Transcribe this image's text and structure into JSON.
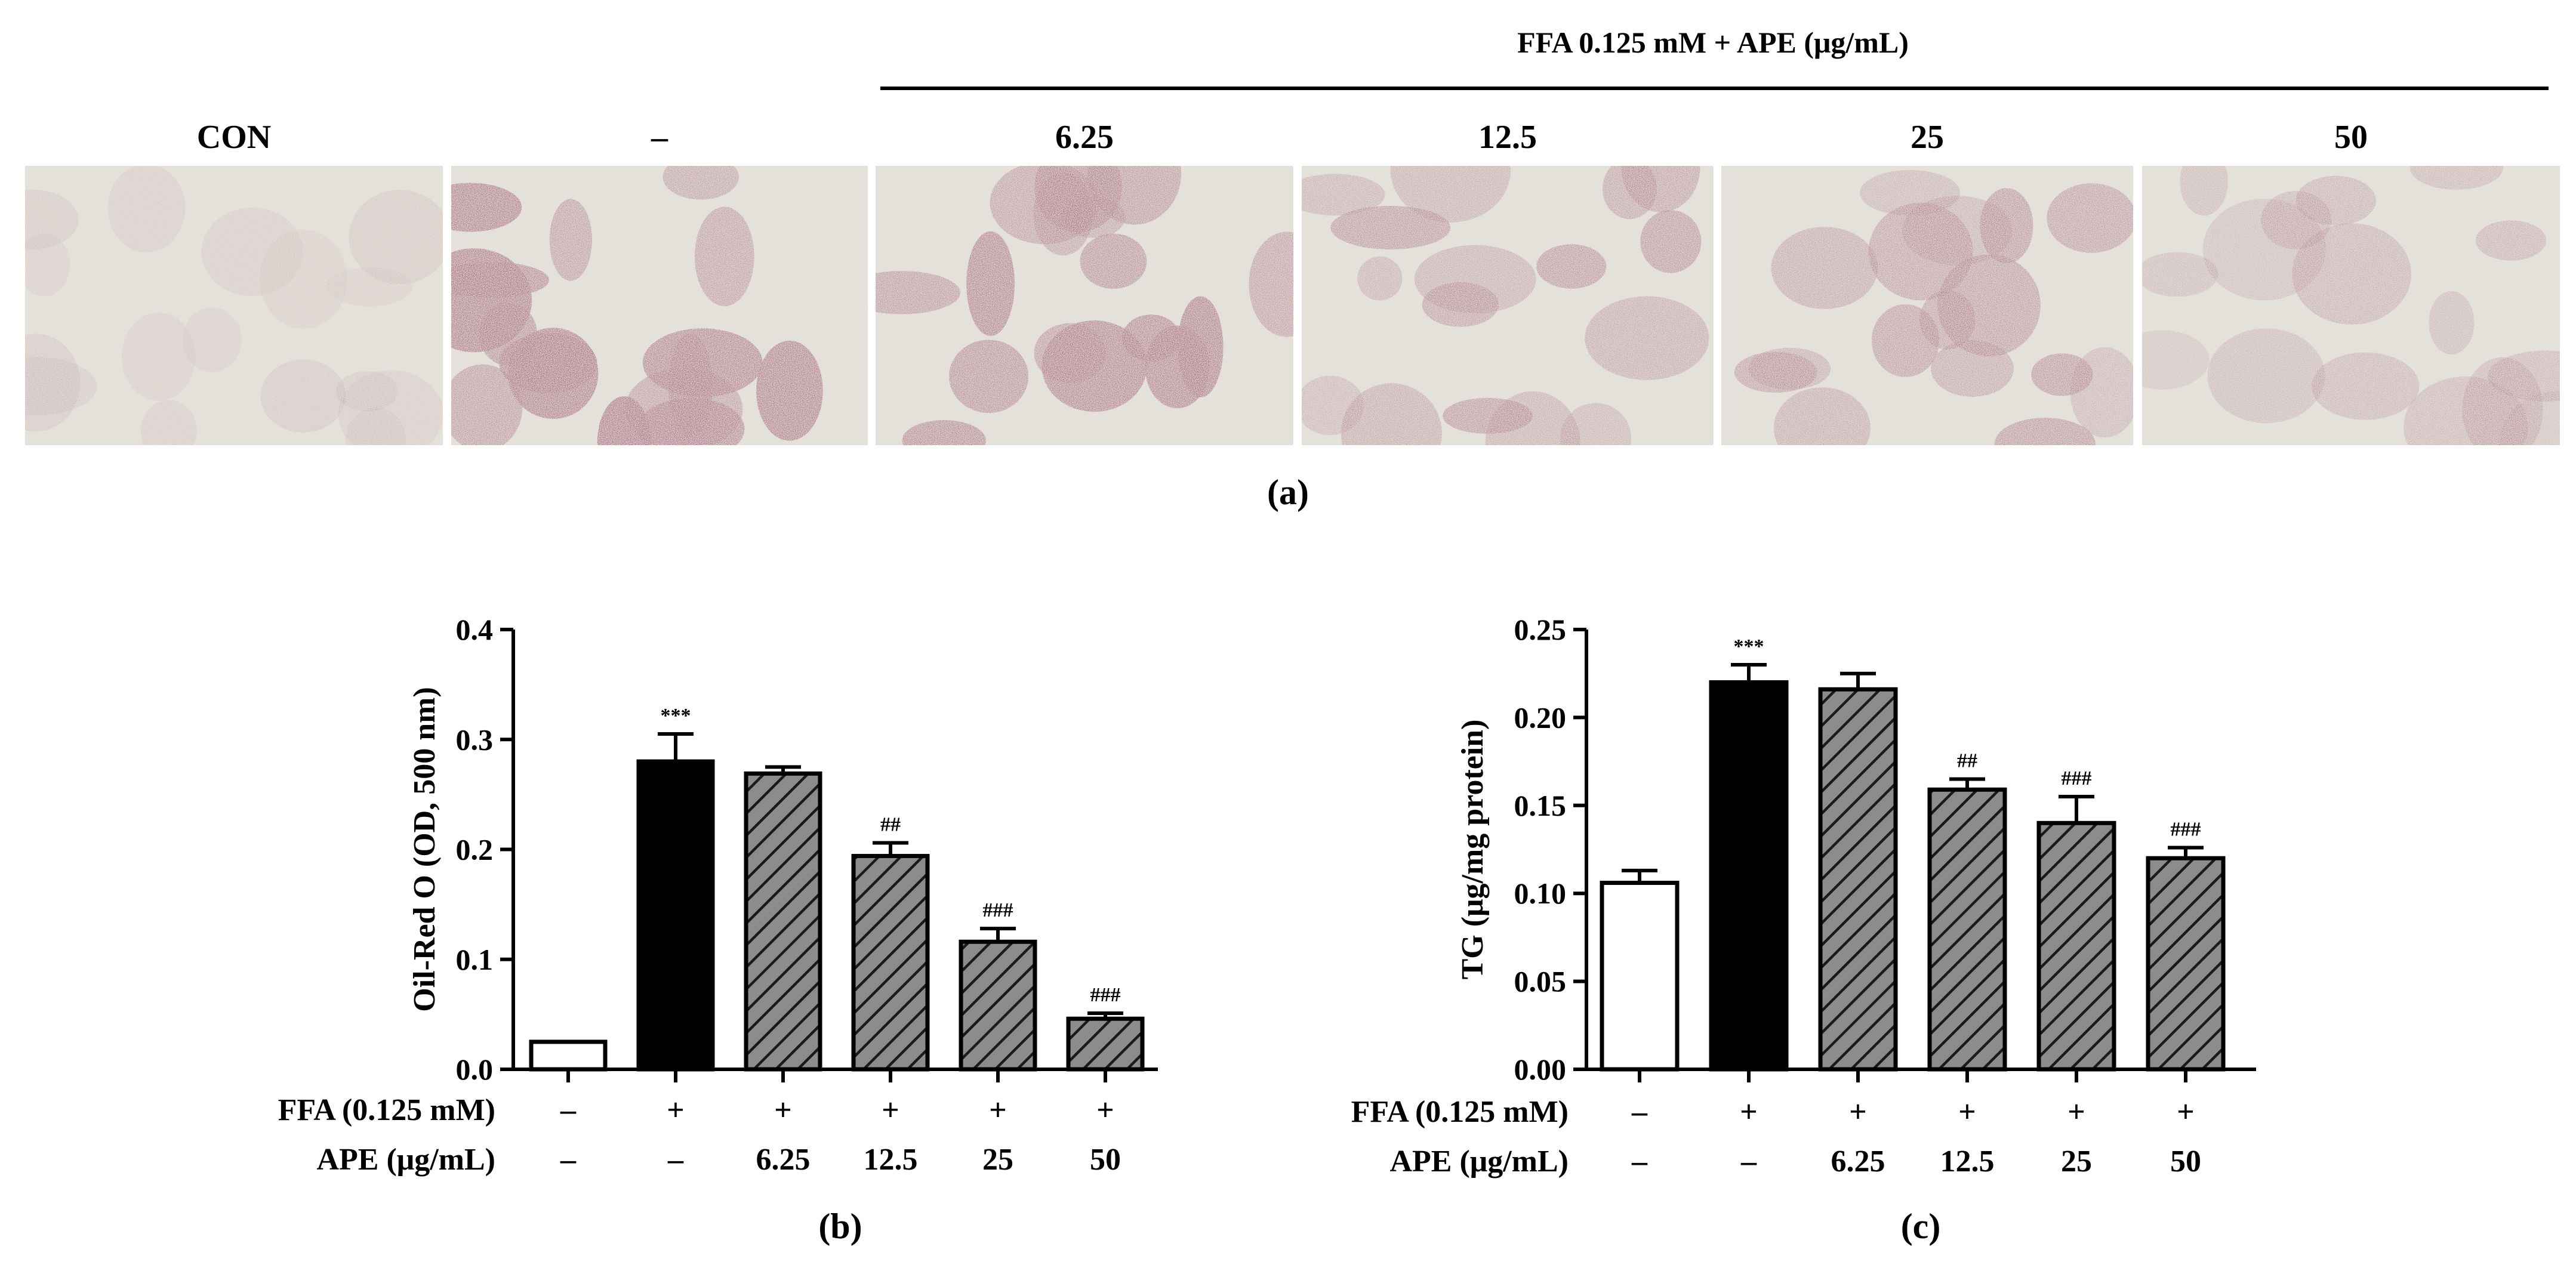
{
  "panel_a": {
    "header": "FFA 0.125 mM + APE (μg/mL)",
    "panels": [
      {
        "label": "CON",
        "stain": "faint"
      },
      {
        "label": "–",
        "stain": "heavy"
      },
      {
        "label": "6.25",
        "stain": "heavy"
      },
      {
        "label": "12.5",
        "stain": "medium"
      },
      {
        "label": "25",
        "stain": "medium"
      },
      {
        "label": "50",
        "stain": "light"
      }
    ],
    "caption": "(a)"
  },
  "rows": {
    "ffa_label": "FFA (0.125 mM)",
    "ape_label": "APE (μg/mL)",
    "ffa_values": [
      "–",
      "+",
      "+",
      "+",
      "+",
      "+"
    ],
    "ape_values": [
      "–",
      "–",
      "6.25",
      "12.5",
      "25",
      "50"
    ]
  },
  "colors": {
    "con": "#ffffff",
    "ffa": "#000000",
    "ape": "#888888",
    "stain": "#8a2d52",
    "background": "#e3e1d9"
  },
  "chart_data": [
    {
      "type": "bar",
      "caption": "(b)",
      "ylabel": "Oil-Red O (OD, 500 nm)",
      "ylim": [
        0,
        0.4
      ],
      "yticks": [
        "0.0",
        "0.1",
        "0.2",
        "0.3",
        "0.4"
      ],
      "categories": [
        "CON",
        "FFA",
        "APE 6.25",
        "APE 12.5",
        "APE 25",
        "APE 50"
      ],
      "values": [
        0.025,
        0.28,
        0.269,
        0.194,
        0.116,
        0.046
      ],
      "errors": [
        0,
        0.025,
        0.006,
        0.012,
        0.012,
        0.005
      ],
      "fills": [
        "white",
        "black",
        "hatch",
        "hatch",
        "hatch",
        "hatch"
      ],
      "annotations": [
        "",
        "***",
        "",
        "##",
        "###",
        "###"
      ]
    },
    {
      "type": "bar",
      "caption": "(c)",
      "ylabel": "TG (μg/mg protein)",
      "ylim": [
        0,
        0.25
      ],
      "yticks": [
        "0.00",
        "0.05",
        "0.10",
        "0.15",
        "0.20",
        "0.25"
      ],
      "categories": [
        "CON",
        "FFA",
        "APE 6.25",
        "APE 12.5",
        "APE 25",
        "APE 50"
      ],
      "values": [
        0.106,
        0.22,
        0.216,
        0.159,
        0.14,
        0.12
      ],
      "errors": [
        0.007,
        0.01,
        0.009,
        0.006,
        0.015,
        0.006
      ],
      "fills": [
        "white",
        "black",
        "hatch",
        "hatch",
        "hatch",
        "hatch"
      ],
      "annotations": [
        "",
        "***",
        "",
        "##",
        "###",
        "###"
      ]
    }
  ]
}
